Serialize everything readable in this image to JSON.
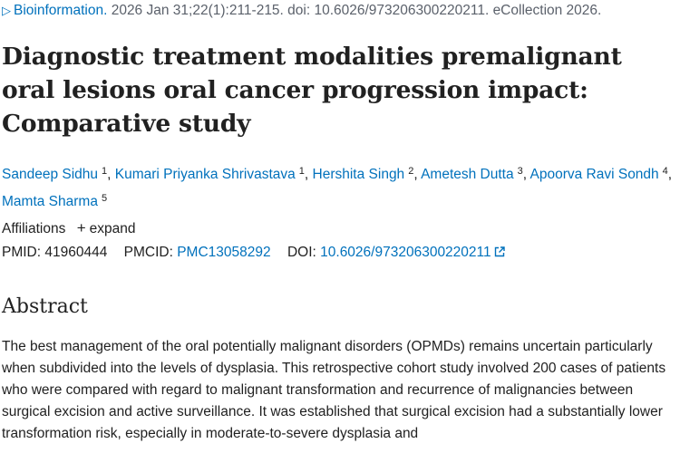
{
  "citation": {
    "arrow": "▷",
    "journal": "Bioinformation.",
    "details": " 2026 Jan 31;22(1):211-215. doi: 10.6026/973206300220211. eCollection 2026."
  },
  "title": "Diagnostic treatment modalities premalignant oral lesions oral cancer progression impact: Comparative study",
  "authors": [
    {
      "name": "Sandeep Sidhu",
      "sup": "1"
    },
    {
      "name": "Kumari Priyanka Shrivastava",
      "sup": "1"
    },
    {
      "name": "Hershita Singh",
      "sup": "2"
    },
    {
      "name": "Ametesh Dutta",
      "sup": "3"
    },
    {
      "name": "Apoorva Ravi Sondh",
      "sup": "4"
    },
    {
      "name": "Mamta Sharma",
      "sup": "5"
    }
  ],
  "affiliations": {
    "label": "Affiliations",
    "expand_icon": "+",
    "expand_label": "expand"
  },
  "ids": {
    "pmid_label": "PMID:",
    "pmid": "41960444",
    "pmcid_label": "PMCID:",
    "pmcid": "PMC13058292",
    "doi_label": "DOI:",
    "doi": "10.6026/973206300220211",
    "doi_icon": "external-link-icon"
  },
  "abstract": {
    "heading": "Abstract",
    "text": "The best management of the oral potentially malignant disorders (OPMDs) remains uncertain particularly when subdivided into the levels of dysplasia. This retrospective cohort study involved 200 cases of patients who were compared with regard to malignant transformation and recurrence of malignancies between surgical excision and active surveillance. It was established that surgical excision had a substantially lower transformation risk, especially in moderate-to-severe dysplasia and"
  },
  "colors": {
    "link": "#0071bc",
    "text": "#212121",
    "muted": "#5b616b"
  }
}
